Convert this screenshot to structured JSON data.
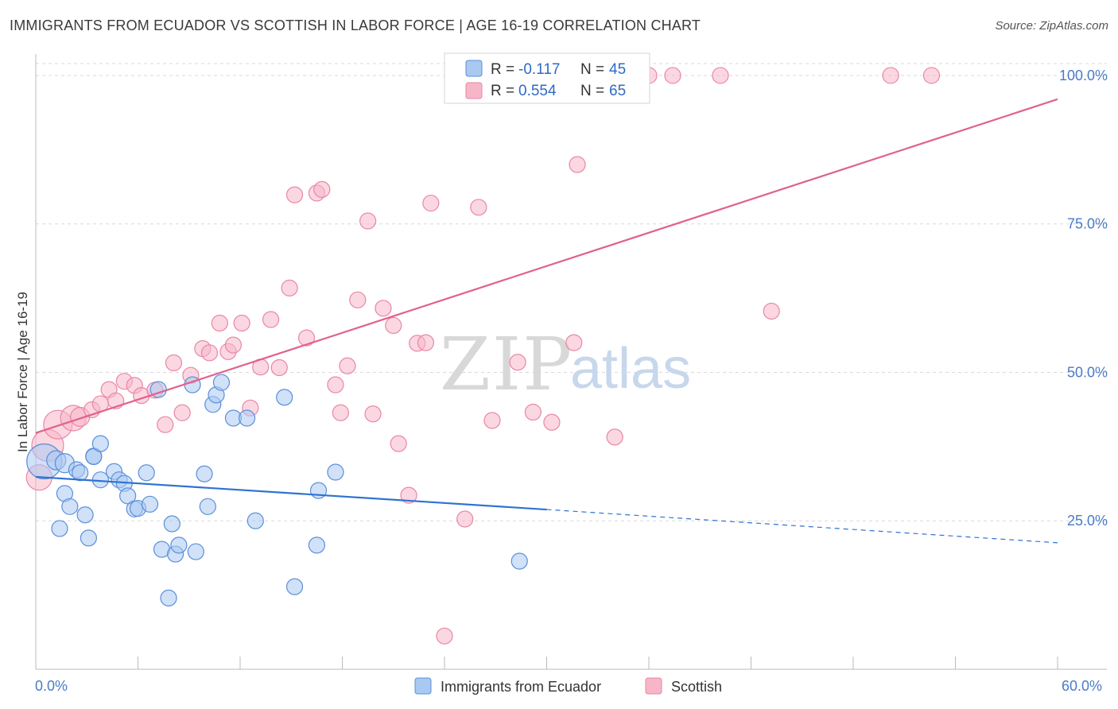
{
  "title": "IMMIGRANTS FROM ECUADOR VS SCOTTISH IN LABOR FORCE | AGE 16-19 CORRELATION CHART",
  "source": "Source: ZipAtlas.com",
  "watermark": {
    "zip": "ZIP",
    "atlas": "atlas"
  },
  "colors": {
    "blue_fill": "#a9c8f2",
    "blue_stroke": "#5b8fd9",
    "blue_line": "#2f72d1",
    "pink_fill": "#f7b6c8",
    "pink_stroke": "#e887a6",
    "pink_line": "#e0628c",
    "tick_label": "#4a7bc8",
    "grid": "#d9d9d9"
  },
  "legend": {
    "rows": [
      {
        "r_label": "R =",
        "r_value": "-0.117",
        "n_label": "N =",
        "n_value": "45"
      },
      {
        "r_label": "R =",
        "r_value": "0.554",
        "n_label": "N =",
        "n_value": "65"
      }
    ]
  },
  "bottom_legend": [
    "Immigrants from Ecuador",
    "Scottish"
  ],
  "chart_data": {
    "type": "scatter",
    "title": "IMMIGRANTS FROM ECUADOR VS SCOTTISH IN LABOR FORCE | AGE 16-19 CORRELATION CHART",
    "xlabel": "",
    "ylabel": "In Labor Force | Age 16-19",
    "xlim": [
      0,
      60
    ],
    "ylim": [
      0,
      102
    ],
    "x_tick_labels": [
      "0.0%",
      "60.0%"
    ],
    "y_ticks": [
      25,
      50,
      75,
      100
    ],
    "y_tick_labels": [
      "25.0%",
      "50.0%",
      "75.0%",
      "100.0%"
    ],
    "grid": true,
    "legend_placement": "top-center",
    "series": [
      {
        "name": "Immigrants from Ecuador",
        "color": "#a9c8f2",
        "trend": {
          "x": [
            0,
            30
          ],
          "y": [
            32.4,
            26.9
          ],
          "dashed_to": [
            60,
            21.3
          ]
        },
        "points": [
          [
            0.5,
            35,
            22
          ],
          [
            1.2,
            35.2,
            12
          ],
          [
            1.7,
            34.7,
            12
          ],
          [
            1.7,
            29.6,
            10
          ],
          [
            2.0,
            27.4,
            10
          ],
          [
            1.4,
            23.7,
            10
          ],
          [
            2.4,
            33.6,
            10
          ],
          [
            2.6,
            33.1,
            10
          ],
          [
            2.9,
            26.0,
            10
          ],
          [
            3.1,
            22.1,
            10
          ],
          [
            3.4,
            35.9,
            10
          ],
          [
            3.4,
            35.8,
            10
          ],
          [
            3.8,
            38.0,
            10
          ],
          [
            3.8,
            31.9,
            10
          ],
          [
            4.6,
            33.3,
            10
          ],
          [
            4.9,
            31.9,
            10
          ],
          [
            5.2,
            31.3,
            10
          ],
          [
            5.4,
            29.2,
            10
          ],
          [
            5.8,
            27.0,
            10
          ],
          [
            6.0,
            27.1,
            10
          ],
          [
            6.5,
            33.1,
            10
          ],
          [
            6.7,
            27.8,
            10
          ],
          [
            7.2,
            47.1,
            10
          ],
          [
            7.4,
            20.2,
            10
          ],
          [
            7.8,
            12.0,
            10
          ],
          [
            8.0,
            24.5,
            10
          ],
          [
            8.2,
            19.4,
            10
          ],
          [
            8.4,
            20.9,
            10
          ],
          [
            9.2,
            47.9,
            10
          ],
          [
            9.4,
            19.8,
            10
          ],
          [
            9.9,
            32.9,
            10
          ],
          [
            10.1,
            27.4,
            10
          ],
          [
            10.4,
            44.6,
            10
          ],
          [
            10.6,
            46.2,
            10
          ],
          [
            10.9,
            48.3,
            10
          ],
          [
            11.6,
            42.3,
            10
          ],
          [
            12.4,
            42.3,
            10
          ],
          [
            12.9,
            25.0,
            10
          ],
          [
            14.6,
            45.8,
            10
          ],
          [
            15.2,
            13.9,
            10
          ],
          [
            16.5,
            20.9,
            10
          ],
          [
            16.6,
            30.1,
            10
          ],
          [
            17.6,
            33.2,
            10
          ],
          [
            28.4,
            18.2,
            10
          ],
          [
            30.0,
            26.9,
            0
          ]
        ]
      },
      {
        "name": "Scottish",
        "color": "#f7b6c8",
        "trend": {
          "x": [
            0,
            60
          ],
          "y": [
            39.8,
            96.0
          ]
        },
        "points": [
          [
            0.2,
            32.3,
            16
          ],
          [
            0.7,
            37.7,
            20
          ],
          [
            1.3,
            41.2,
            18
          ],
          [
            2.2,
            42.3,
            16
          ],
          [
            2.6,
            42.5,
            12
          ],
          [
            3.3,
            43.7,
            10
          ],
          [
            3.8,
            44.7,
            10
          ],
          [
            4.3,
            47.1,
            10
          ],
          [
            4.7,
            45.2,
            10
          ],
          [
            5.2,
            48.5,
            10
          ],
          [
            5.8,
            47.8,
            10
          ],
          [
            6.2,
            46.1,
            10
          ],
          [
            7.0,
            47.0,
            10
          ],
          [
            7.6,
            41.2,
            10
          ],
          [
            8.1,
            51.6,
            10
          ],
          [
            8.6,
            43.2,
            10
          ],
          [
            9.1,
            49.5,
            10
          ],
          [
            9.8,
            54.0,
            10
          ],
          [
            10.2,
            53.3,
            10
          ],
          [
            10.8,
            58.3,
            10
          ],
          [
            11.3,
            53.5,
            10
          ],
          [
            11.6,
            54.6,
            10
          ],
          [
            12.1,
            58.3,
            10
          ],
          [
            12.6,
            44.0,
            10
          ],
          [
            13.2,
            50.9,
            10
          ],
          [
            13.8,
            58.9,
            10
          ],
          [
            14.3,
            50.8,
            10
          ],
          [
            14.9,
            64.2,
            10
          ],
          [
            15.2,
            79.9,
            10
          ],
          [
            15.9,
            55.8,
            10
          ],
          [
            16.5,
            80.2,
            10
          ],
          [
            16.8,
            80.8,
            10
          ],
          [
            17.6,
            47.9,
            10
          ],
          [
            17.9,
            43.2,
            10
          ],
          [
            18.3,
            51.1,
            10
          ],
          [
            18.9,
            62.2,
            10
          ],
          [
            19.5,
            75.5,
            10
          ],
          [
            19.8,
            43.0,
            10
          ],
          [
            20.4,
            60.8,
            10
          ],
          [
            21.0,
            57.9,
            10
          ],
          [
            21.3,
            38.0,
            10
          ],
          [
            21.9,
            29.3,
            10
          ],
          [
            22.4,
            54.9,
            10
          ],
          [
            22.9,
            55.0,
            10
          ],
          [
            23.2,
            78.5,
            10
          ],
          [
            24.0,
            5.6,
            10
          ],
          [
            24.6,
            100.0,
            10
          ],
          [
            25.2,
            25.3,
            10
          ],
          [
            26.0,
            77.8,
            10
          ],
          [
            26.8,
            41.9,
            10
          ],
          [
            28.3,
            51.7,
            10
          ],
          [
            29.2,
            43.3,
            10
          ],
          [
            30.3,
            41.6,
            10
          ],
          [
            31.6,
            55.0,
            10
          ],
          [
            31.8,
            85.0,
            10
          ],
          [
            34.0,
            39.1,
            10
          ],
          [
            36.0,
            100.0,
            10
          ],
          [
            37.4,
            100.0,
            10
          ],
          [
            40.2,
            100.0,
            10
          ],
          [
            43.2,
            60.3,
            10
          ],
          [
            50.2,
            100.0,
            10
          ],
          [
            52.6,
            100.0,
            10
          ],
          [
            24.8,
            100.5,
            10
          ],
          [
            28.0,
            100.5,
            10
          ],
          [
            35.5,
            100.5,
            10
          ]
        ]
      }
    ]
  }
}
